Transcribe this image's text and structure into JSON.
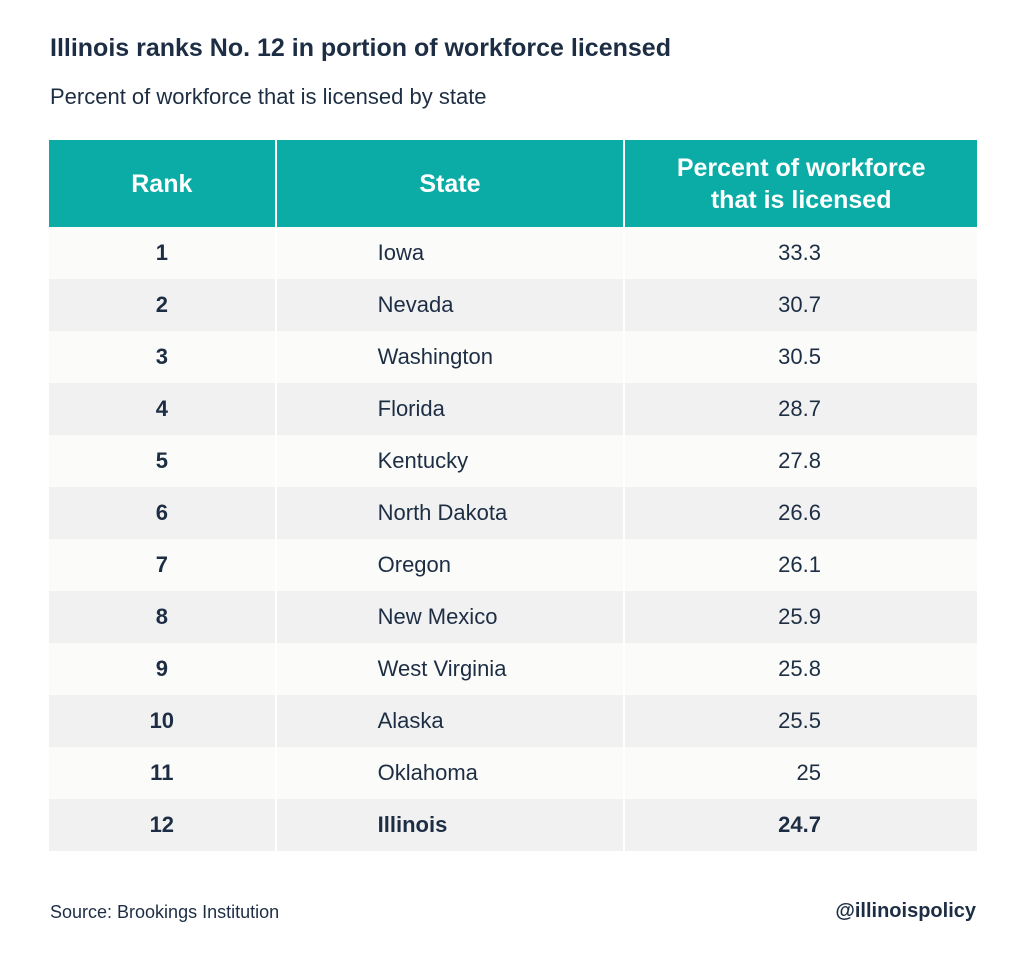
{
  "chart_data": {
    "type": "table",
    "title": "Illinois ranks No. 12 in portion of workforce licensed",
    "subtitle": "Percent of workforce that is licensed by state",
    "columns": [
      "Rank",
      "State",
      "Percent of workforce that is licensed"
    ],
    "rows": [
      {
        "rank": "1",
        "state": "Iowa",
        "percent": "33.3"
      },
      {
        "rank": "2",
        "state": "Nevada",
        "percent": "30.7"
      },
      {
        "rank": "3",
        "state": "Washington",
        "percent": "30.5"
      },
      {
        "rank": "4",
        "state": "Florida",
        "percent": "28.7"
      },
      {
        "rank": "5",
        "state": "Kentucky",
        "percent": "27.8"
      },
      {
        "rank": "6",
        "state": "North Dakota",
        "percent": "26.6"
      },
      {
        "rank": "7",
        "state": "Oregon",
        "percent": "26.1"
      },
      {
        "rank": "8",
        "state": "New Mexico",
        "percent": "25.9"
      },
      {
        "rank": "9",
        "state": "West Virginia",
        "percent": "25.8"
      },
      {
        "rank": "10",
        "state": "Alaska",
        "percent": "25.5"
      },
      {
        "rank": "11",
        "state": "Oklahoma",
        "percent": "25"
      },
      {
        "rank": "12",
        "state": "Illinois",
        "percent": "24.7"
      }
    ],
    "highlight_state": "Illinois",
    "header_color": "#0aaca5"
  },
  "footer": {
    "source": "Source: Brookings Institution",
    "handle": "@illinoispolicy"
  }
}
